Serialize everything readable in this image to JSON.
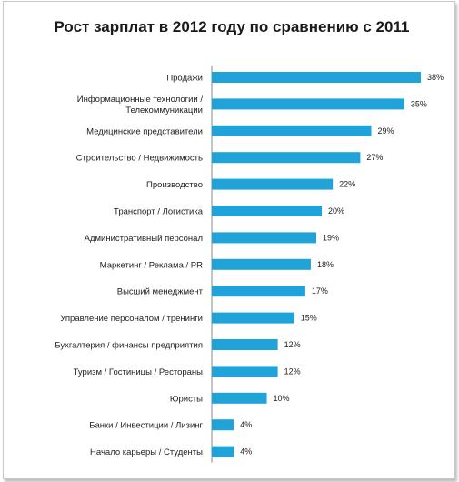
{
  "chart_data": {
    "type": "bar",
    "orientation": "horizontal",
    "title": "Рост зарплат в 2012 году по сравнению с 2011",
    "categories": [
      [
        "Продажи"
      ],
      [
        "Информационные технологии /",
        "Телекоммуникации"
      ],
      [
        "Медицинские представители"
      ],
      [
        "Строительство / Недвижимость"
      ],
      [
        "Производство"
      ],
      [
        "Транспорт / Логистика"
      ],
      [
        "Административный персонал"
      ],
      [
        "Маркетинг / Реклама / PR"
      ],
      [
        "Высший менеджмент"
      ],
      [
        "Управление персоналом / тренинги"
      ],
      [
        "Бухгалтерия / финансы предприятия"
      ],
      [
        "Туризм / Гостиницы / Рестораны"
      ],
      [
        "Юристы"
      ],
      [
        "Банки / Инвестиции / Лизинг"
      ],
      [
        "Начало карьеры / Студенты"
      ]
    ],
    "values": [
      38,
      35,
      29,
      27,
      22,
      20,
      19,
      18,
      17,
      15,
      12,
      12,
      10,
      4,
      4
    ],
    "value_suffix": "%",
    "bar_color": "#1fa3d8",
    "xlim": [
      0,
      38
    ]
  }
}
